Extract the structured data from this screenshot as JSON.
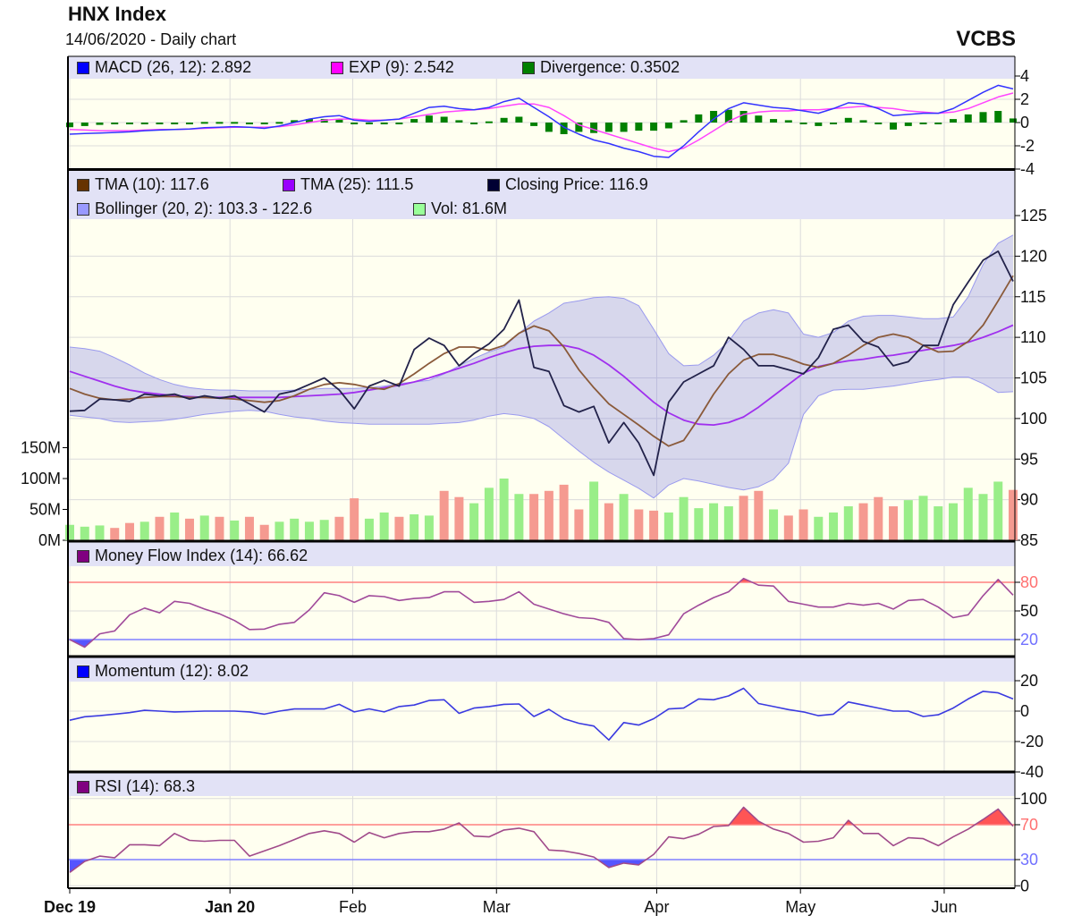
{
  "header": {
    "title": "HNX Index",
    "subtitle": "14/06/2020 - Daily chart",
    "brand": "VCBS"
  },
  "legends": {
    "macd": {
      "label": "MACD (26, 12): 2.892",
      "color": "#0000ff"
    },
    "exp": {
      "label": "EXP (9): 2.542",
      "color": "#ff00ff"
    },
    "divergence": {
      "label": "Divergence: 0.3502",
      "color": "#008000"
    },
    "tma10": {
      "label": "TMA (10): 117.6",
      "color": "#663300"
    },
    "tma25": {
      "label": "TMA (25): 111.5",
      "color": "#9900ff"
    },
    "close": {
      "label": "Closing Price: 116.9",
      "color": "#000033"
    },
    "bollinger": {
      "label": "Bollinger (20, 2): 103.3 - 122.6",
      "color": "#9999ff"
    },
    "vol": {
      "label": "Vol: 81.6M",
      "color": "#99ff99"
    },
    "mfi": {
      "label": "Money Flow Index (14): 66.62",
      "color": "#800080"
    },
    "momentum": {
      "label": "Momentum (12): 8.02",
      "color": "#0000ff"
    },
    "rsi": {
      "label": "RSI (14): 68.3",
      "color": "#800080"
    }
  },
  "chart_data": {
    "type": "line",
    "x_ticks": [
      {
        "label": "Dec 19",
        "at_session": 0,
        "bold": true
      },
      {
        "label": "Jan 20",
        "at_session": 10.7,
        "bold": true
      },
      {
        "label": "Feb",
        "at_session": 18.9,
        "bold": false
      },
      {
        "label": "Mar",
        "at_session": 28.5,
        "bold": false
      },
      {
        "label": "Apr",
        "at_session": 39.2,
        "bold": false
      },
      {
        "label": "May",
        "at_session": 48.8,
        "bold": false
      },
      {
        "label": "Jun",
        "at_session": 58.4,
        "bold": false
      }
    ],
    "macd_panel": {
      "y_ticks": [
        "4",
        "2",
        "0",
        "-2",
        "-4"
      ],
      "ylim": [
        -4,
        4
      ],
      "macd": [
        -1.0,
        -0.95,
        -0.9,
        -0.85,
        -0.8,
        -0.7,
        -0.65,
        -0.6,
        -0.55,
        -0.45,
        -0.4,
        -0.35,
        -0.4,
        -0.5,
        -0.3,
        0,
        0.3,
        0.5,
        0.6,
        0.2,
        0.1,
        0.2,
        0.3,
        0.8,
        1.3,
        1.4,
        1.2,
        1.1,
        1.3,
        1.8,
        2.1,
        1.3,
        0.5,
        -0.4,
        -1.0,
        -1.5,
        -1.8,
        -2.2,
        -2.5,
        -2.9,
        -3.0,
        -2.0,
        -0.8,
        0.3,
        1.2,
        1.7,
        1.5,
        1.3,
        1.2,
        1.0,
        0.8,
        1.2,
        1.7,
        1.6,
        1.2,
        0.6,
        0.7,
        0.8,
        0.8,
        1.2,
        1.9,
        2.6,
        3.2,
        2.892
      ],
      "signal": [
        -0.6,
        -0.65,
        -0.7,
        -0.7,
        -0.7,
        -0.65,
        -0.6,
        -0.6,
        -0.55,
        -0.5,
        -0.45,
        -0.4,
        -0.4,
        -0.4,
        -0.35,
        -0.2,
        0,
        0.2,
        0.3,
        0.3,
        0.2,
        0.2,
        0.3,
        0.5,
        0.7,
        0.9,
        1.0,
        1.1,
        1.2,
        1.4,
        1.6,
        1.6,
        1.3,
        0.6,
        -0.2,
        -0.6,
        -1.0,
        -1.4,
        -1.8,
        -2.2,
        -2.5,
        -2.2,
        -1.5,
        -0.7,
        0.1,
        0.7,
        0.9,
        1.0,
        1.0,
        1.1,
        1.1,
        1.2,
        1.3,
        1.4,
        1.3,
        1.2,
        1.0,
        0.9,
        0.8,
        0.9,
        1.2,
        1.7,
        2.2,
        2.542
      ]
    },
    "price_panel": {
      "y_ticks": [
        "125",
        "120",
        "115",
        "110",
        "105",
        "100",
        "95",
        "90",
        "85"
      ],
      "ylim": [
        85,
        125
      ],
      "volume_ticks": [
        "150M",
        "100M",
        "50M",
        "0M"
      ],
      "close": [
        100.9,
        101.0,
        102.4,
        102.3,
        102.1,
        103.0,
        102.8,
        103.0,
        102.4,
        102.8,
        102.5,
        102.8,
        101.8,
        100.8,
        103.0,
        103.4,
        104.2,
        105.0,
        103.5,
        101.2,
        104.0,
        104.7,
        104.0,
        108.5,
        109.9,
        109.0,
        106.5,
        108.0,
        109.2,
        111.0,
        114.6,
        106.3,
        105.8,
        101.6,
        100.8,
        101.5,
        97.0,
        99.5,
        97.0,
        93.0,
        102.0,
        104.5,
        105.5,
        106.5,
        110.0,
        108.5,
        106.5,
        106.5,
        106.0,
        105.5,
        107.5,
        111.0,
        111.5,
        109.5,
        108.8,
        106.5,
        107.0,
        109.0,
        109.0,
        114.0,
        116.8,
        119.5,
        120.6,
        116.9
      ],
      "tma10": [
        103.7,
        103.0,
        102.5,
        102.3,
        102.4,
        102.6,
        102.7,
        102.7,
        102.6,
        102.6,
        102.5,
        102.4,
        102.2,
        102.0,
        102.2,
        102.8,
        103.6,
        104.2,
        104.4,
        104.2,
        103.8,
        103.6,
        104.3,
        105.5,
        106.8,
        108.0,
        108.8,
        108.8,
        108.4,
        109.0,
        110.5,
        111.4,
        110.8,
        108.8,
        106.0,
        103.8,
        101.8,
        100.5,
        99.2,
        97.8,
        96.6,
        97.3,
        100.0,
        103.0,
        105.5,
        107.2,
        107.9,
        107.9,
        107.4,
        106.7,
        106.3,
        106.8,
        107.8,
        109.0,
        110.0,
        110.4,
        110.0,
        109.0,
        108.2,
        108.3,
        109.5,
        111.5,
        114.5,
        117.6
      ],
      "tma25": [
        105.8,
        105.2,
        104.6,
        104.0,
        103.5,
        103.2,
        103.0,
        102.8,
        102.7,
        102.6,
        102.6,
        102.6,
        102.6,
        102.6,
        102.6,
        102.7,
        102.8,
        102.9,
        103.0,
        103.2,
        103.5,
        103.8,
        104.1,
        104.5,
        105.0,
        105.6,
        106.2,
        106.8,
        107.5,
        108.1,
        108.6,
        108.9,
        109.0,
        109.0,
        108.6,
        107.8,
        106.6,
        105.2,
        103.6,
        102.0,
        100.7,
        99.8,
        99.3,
        99.2,
        99.5,
        100.2,
        101.4,
        102.8,
        104.2,
        105.6,
        106.4,
        106.8,
        107.1,
        107.3,
        107.6,
        107.8,
        108.1,
        108.4,
        108.7,
        109.0,
        109.4,
        110.0,
        110.7,
        111.5
      ],
      "bollinger_upper": [
        108.8,
        108.6,
        108.3,
        107.5,
        106.6,
        105.6,
        104.8,
        104.2,
        103.8,
        103.6,
        103.5,
        103.5,
        103.4,
        103.4,
        103.4,
        103.5,
        103.6,
        103.7,
        103.7,
        103.7,
        103.8,
        104.0,
        104.3,
        104.5,
        104.7,
        105.5,
        106.5,
        107.4,
        108.2,
        108.8,
        110.5,
        112.0,
        113.0,
        114.2,
        114.5,
        114.9,
        115.0,
        114.8,
        113.9,
        111.0,
        108.0,
        106.5,
        106.6,
        107.8,
        109.5,
        112.0,
        113.0,
        113.4,
        113.0,
        110.4,
        110.0,
        110.6,
        112.0,
        112.6,
        112.7,
        112.7,
        112.5,
        112.3,
        112.3,
        112.5,
        115.0,
        119.0,
        121.6,
        122.6
      ],
      "bollinger_lower": [
        100.4,
        100.2,
        100.0,
        99.6,
        99.5,
        99.6,
        99.7,
        99.9,
        100.2,
        100.5,
        100.7,
        100.9,
        101.0,
        100.9,
        100.5,
        100.2,
        100.0,
        99.7,
        99.5,
        99.4,
        99.3,
        99.3,
        99.3,
        99.3,
        99.3,
        99.4,
        99.5,
        99.8,
        100.3,
        100.6,
        100.4,
        100.0,
        99.0,
        97.5,
        96.0,
        94.6,
        93.4,
        92.4,
        91.4,
        90.2,
        91.8,
        92.6,
        92.3,
        91.9,
        91.5,
        91.2,
        91.6,
        92.5,
        94.5,
        100.5,
        102.8,
        103.5,
        103.6,
        103.6,
        103.8,
        104.0,
        104.3,
        104.6,
        104.8,
        105.1,
        105.1,
        104.3,
        103.2,
        103.3
      ],
      "volume_millions": [
        25,
        22,
        24,
        20,
        28,
        30,
        38,
        45,
        35,
        40,
        38,
        32,
        38,
        25,
        30,
        35,
        30,
        33,
        38,
        68,
        35,
        45,
        38,
        42,
        40,
        80,
        70,
        60,
        85,
        100,
        75,
        75,
        80,
        90,
        50,
        95,
        60,
        75,
        50,
        48,
        45,
        70,
        52,
        60,
        55,
        72,
        80,
        50,
        40,
        50,
        38,
        45,
        55,
        60,
        70,
        55,
        65,
        72,
        55,
        60,
        85,
        75,
        95,
        81.6
      ],
      "volume_up_color": "#99ee88",
      "volume_down_color": "#f59a90"
    },
    "mfi_panel": {
      "y_ticks": [
        "80",
        "50",
        "20"
      ],
      "overbought": 80,
      "oversold": 20,
      "values": [
        20,
        12,
        26,
        29,
        46,
        53,
        48,
        60,
        58,
        52,
        47,
        40,
        30.5,
        31,
        36,
        38,
        51,
        69,
        66,
        59,
        66,
        65,
        61,
        63,
        64,
        70,
        70,
        59,
        60,
        62,
        70,
        57,
        52,
        47,
        43,
        42,
        38,
        21,
        20,
        21,
        25,
        47,
        56,
        64,
        70,
        84,
        77,
        76,
        60,
        57,
        54,
        54,
        58,
        56,
        58,
        52,
        61,
        62,
        54,
        43,
        46,
        66,
        83,
        66.62
      ]
    },
    "momentum_panel": {
      "y_ticks": [
        "20",
        "0",
        "-20",
        "-40"
      ],
      "values": [
        -6,
        -3.7,
        -3,
        -2,
        -1,
        0.5,
        0,
        -0.5,
        -0.3,
        0,
        0,
        0,
        -0.5,
        -2,
        0,
        1.4,
        1.4,
        1.4,
        4.5,
        -0.5,
        1.5,
        -0.5,
        3,
        4,
        7,
        7.5,
        -1.5,
        2,
        3,
        4.5,
        4.7,
        -3.5,
        1.2,
        -5,
        -8,
        -9.8,
        -19,
        -7.5,
        -9.2,
        -5,
        1.4,
        2,
        8,
        7.5,
        10,
        15,
        5,
        3,
        1,
        -0.5,
        -3,
        -2,
        6,
        4,
        2,
        0,
        0,
        -3.5,
        -2.4,
        2,
        8,
        13,
        12,
        8.02
      ]
    },
    "rsi_panel": {
      "y_ticks": [
        "100",
        "70",
        "30",
        "0"
      ],
      "overbought": 70,
      "oversold": 30,
      "values": [
        15.3,
        28,
        34,
        32,
        47,
        47,
        46,
        60,
        52,
        51,
        52,
        52,
        34,
        40,
        46,
        53,
        60,
        63,
        60,
        50,
        61,
        55,
        60,
        62,
        62,
        65,
        72,
        57,
        56,
        64,
        66,
        62,
        41,
        40,
        37,
        33,
        21,
        26,
        24,
        36,
        56,
        54,
        59,
        68,
        69,
        90,
        74,
        65,
        60,
        50,
        51,
        55,
        75,
        60,
        60,
        46,
        55,
        54,
        46,
        56,
        65,
        76,
        88,
        68.3
      ]
    }
  }
}
